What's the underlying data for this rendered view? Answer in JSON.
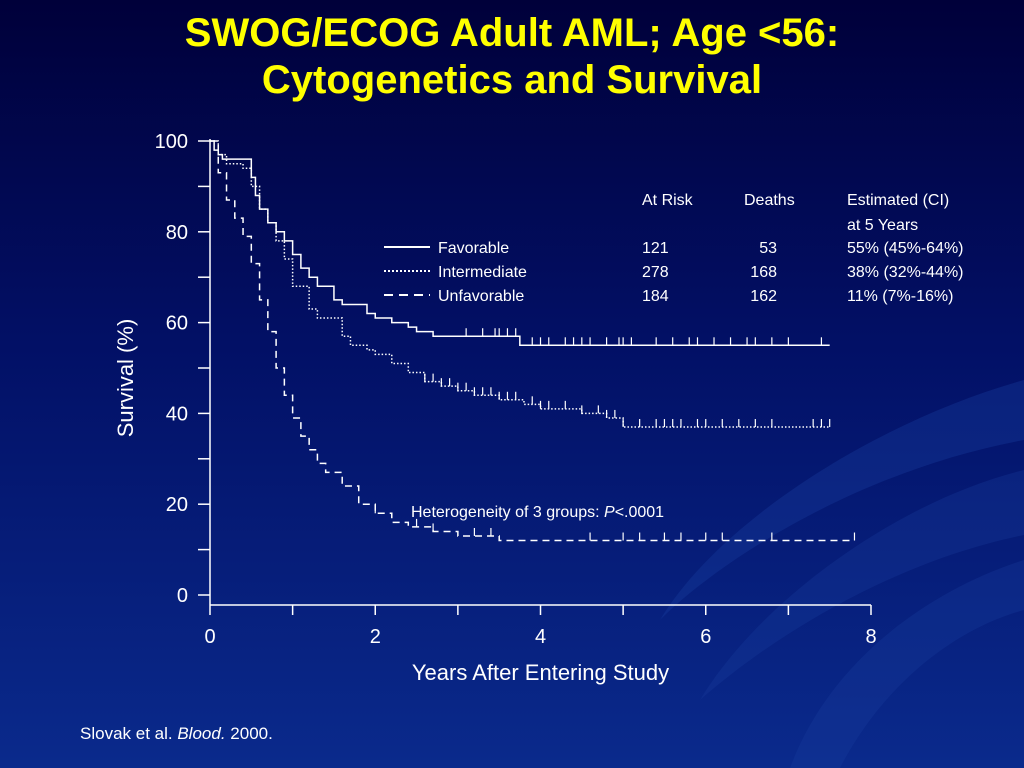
{
  "slide": {
    "title_line1": "SWOG/ECOG Adult AML; Age <56:",
    "title_line2": "Cytogenetics and Survival",
    "citation_authors": "Slovak et al.",
    "citation_journal": "Blood.",
    "citation_year": "2000.",
    "colors": {
      "background": "#02125e",
      "title": "#ffff00",
      "text": "#ffffff",
      "decoration": "#1a3fa0"
    }
  },
  "chart_data": {
    "type": "line",
    "title": "",
    "xlabel": "Years After Entering Study",
    "ylabel": "Survival (%)",
    "xlim": [
      0,
      8
    ],
    "ylim": [
      0,
      100
    ],
    "x_ticks": [
      0,
      1,
      2,
      3,
      4,
      5,
      6,
      7,
      8
    ],
    "x_tick_labels": [
      "0",
      "2",
      "4",
      "6",
      "8"
    ],
    "x_tick_label_values": [
      0,
      2,
      4,
      6,
      8
    ],
    "y_ticks": [
      0,
      10,
      20,
      30,
      40,
      50,
      60,
      70,
      80,
      90,
      100
    ],
    "y_tick_labels": [
      "0",
      "20",
      "40",
      "60",
      "80",
      "100"
    ],
    "y_tick_label_values": [
      0,
      20,
      40,
      60,
      80,
      100
    ],
    "grid": false,
    "legend_position": "top-right",
    "table_headers": {
      "at_risk": "At Risk",
      "deaths": "Deaths",
      "estimate_line1": "Estimated (CI)",
      "estimate_line2": "at 5 Years"
    },
    "series": [
      {
        "name": "Favorable",
        "style": "solid",
        "at_risk": "121",
        "deaths": "53",
        "estimate": "55% (45%-64%)",
        "x": [
          0,
          0.05,
          0.1,
          0.15,
          0.4,
          0.5,
          0.55,
          0.6,
          0.7,
          0.8,
          0.9,
          1.0,
          1.1,
          1.2,
          1.3,
          1.5,
          1.6,
          1.9,
          2.0,
          2.2,
          2.4,
          2.5,
          2.7,
          3.0,
          3.3,
          3.6,
          3.75,
          5.0,
          6.0,
          7.0,
          7.5
        ],
        "y": [
          100,
          98,
          97,
          96,
          96,
          92,
          88,
          85,
          82,
          80,
          78,
          75,
          72,
          70,
          68,
          65,
          64,
          62,
          61,
          60,
          59,
          58,
          57,
          57,
          57,
          57,
          55,
          55,
          55,
          55,
          55
        ],
        "censor_x": [
          3.1,
          3.3,
          3.45,
          3.5,
          3.6,
          3.7,
          3.9,
          4.0,
          4.1,
          4.3,
          4.4,
          4.5,
          4.6,
          4.8,
          4.95,
          5.0,
          5.1,
          5.4,
          5.6,
          5.8,
          5.9,
          6.1,
          6.3,
          6.5,
          6.6,
          6.8,
          7.0,
          7.4
        ]
      },
      {
        "name": "Intermediate",
        "style": "dotted",
        "at_risk": "278",
        "deaths": "168",
        "estimate": "38% (32%-44%)",
        "x": [
          0,
          0.1,
          0.2,
          0.4,
          0.5,
          0.6,
          0.7,
          0.8,
          0.9,
          1.0,
          1.2,
          1.3,
          1.6,
          1.7,
          1.9,
          2.0,
          2.2,
          2.4,
          2.6,
          2.8,
          3.0,
          3.2,
          3.5,
          3.8,
          4.0,
          4.5,
          4.8,
          5.0,
          5.5,
          6.0,
          7.0,
          7.5
        ],
        "y": [
          100,
          97,
          95,
          94,
          90,
          85,
          82,
          78,
          74,
          68,
          63,
          61,
          57,
          55,
          54,
          53,
          51,
          49,
          47,
          46,
          45,
          44,
          43,
          42,
          41,
          40,
          39,
          37,
          37,
          37,
          37,
          37
        ],
        "censor_x": [
          2.6,
          2.7,
          2.8,
          2.9,
          3.0,
          3.1,
          3.2,
          3.3,
          3.4,
          3.5,
          3.6,
          3.7,
          3.9,
          4.0,
          4.1,
          4.3,
          4.5,
          4.7,
          4.8,
          4.9,
          5.0,
          5.2,
          5.4,
          5.5,
          5.6,
          5.7,
          5.9,
          6.0,
          6.2,
          6.4,
          6.6,
          6.8,
          7.3,
          7.4,
          7.5
        ]
      },
      {
        "name": "Unfavorable",
        "style": "dashed",
        "at_risk": "184",
        "deaths": "162",
        "estimate": "11% (7%-16%)",
        "x": [
          0,
          0.1,
          0.2,
          0.3,
          0.4,
          0.5,
          0.6,
          0.7,
          0.8,
          0.9,
          1.0,
          1.1,
          1.2,
          1.3,
          1.4,
          1.6,
          1.8,
          2.0,
          2.2,
          2.4,
          2.7,
          3.0,
          3.5,
          4.0,
          5.0,
          6.0,
          7.0,
          7.8
        ],
        "y": [
          100,
          93,
          87,
          83,
          79,
          73,
          65,
          58,
          50,
          44,
          39,
          35,
          32,
          29,
          27,
          24,
          20,
          18,
          16,
          15,
          14,
          13,
          12,
          12,
          12,
          12,
          12,
          12
        ],
        "censor_x": [
          2.0,
          2.5,
          2.7,
          3.2,
          3.4,
          4.6,
          5.0,
          5.2,
          5.5,
          5.7,
          6.0,
          6.2,
          6.8,
          7.8
        ]
      }
    ],
    "annotation": {
      "text_prefix": "Heterogeneity of 3 groups: ",
      "p_symbol": "P",
      "p_value": "<.0001"
    }
  }
}
